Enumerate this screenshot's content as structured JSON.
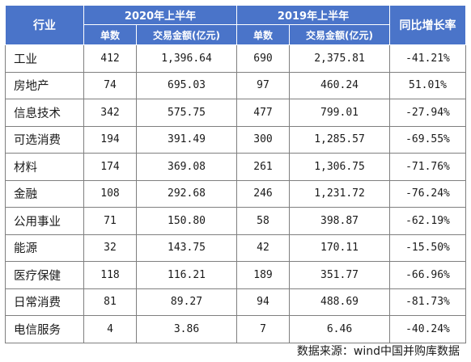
{
  "header": {
    "industry": "行业",
    "period_2020": "2020年上半年",
    "period_2019": "2019年上半年",
    "growth": "同比增长率",
    "count": "单数",
    "amount": "交易金额(亿元)"
  },
  "rows": [
    {
      "industry": "工业",
      "count_2020": "412",
      "amount_2020": "1,396.64",
      "count_2019": "690",
      "amount_2019": "2,375.81",
      "growth": "-41.21%"
    },
    {
      "industry": "房地产",
      "count_2020": "74",
      "amount_2020": "695.03",
      "count_2019": "97",
      "amount_2019": "460.24",
      "growth": "51.01%"
    },
    {
      "industry": "信息技术",
      "count_2020": "342",
      "amount_2020": "575.75",
      "count_2019": "477",
      "amount_2019": "799.01",
      "growth": "-27.94%"
    },
    {
      "industry": "可选消费",
      "count_2020": "194",
      "amount_2020": "391.49",
      "count_2019": "300",
      "amount_2019": "1,285.57",
      "growth": "-69.55%"
    },
    {
      "industry": "材料",
      "count_2020": "174",
      "amount_2020": "369.08",
      "count_2019": "261",
      "amount_2019": "1,306.75",
      "growth": "-71.76%"
    },
    {
      "industry": "金融",
      "count_2020": "108",
      "amount_2020": "292.68",
      "count_2019": "246",
      "amount_2019": "1,231.72",
      "growth": "-76.24%"
    },
    {
      "industry": "公用事业",
      "count_2020": "71",
      "amount_2020": "150.80",
      "count_2019": "58",
      "amount_2019": "398.87",
      "growth": "-62.19%"
    },
    {
      "industry": "能源",
      "count_2020": "32",
      "amount_2020": "143.75",
      "count_2019": "42",
      "amount_2019": "170.11",
      "growth": "-15.50%"
    },
    {
      "industry": "医疗保健",
      "count_2020": "118",
      "amount_2020": "116.21",
      "count_2019": "189",
      "amount_2019": "351.77",
      "growth": "-66.96%"
    },
    {
      "industry": "日常消费",
      "count_2020": "81",
      "amount_2020": "89.27",
      "count_2019": "94",
      "amount_2019": "488.69",
      "growth": "-81.73%"
    },
    {
      "industry": "电信服务",
      "count_2020": "4",
      "amount_2020": "3.86",
      "count_2019": "7",
      "amount_2019": "6.46",
      "growth": "-40.24%"
    }
  ],
  "source": "数据来源：wind中国并购库数据",
  "colors": {
    "header_bg": "#4a74c9",
    "header_text": "#ffffff",
    "border": "#7f7f7f"
  }
}
